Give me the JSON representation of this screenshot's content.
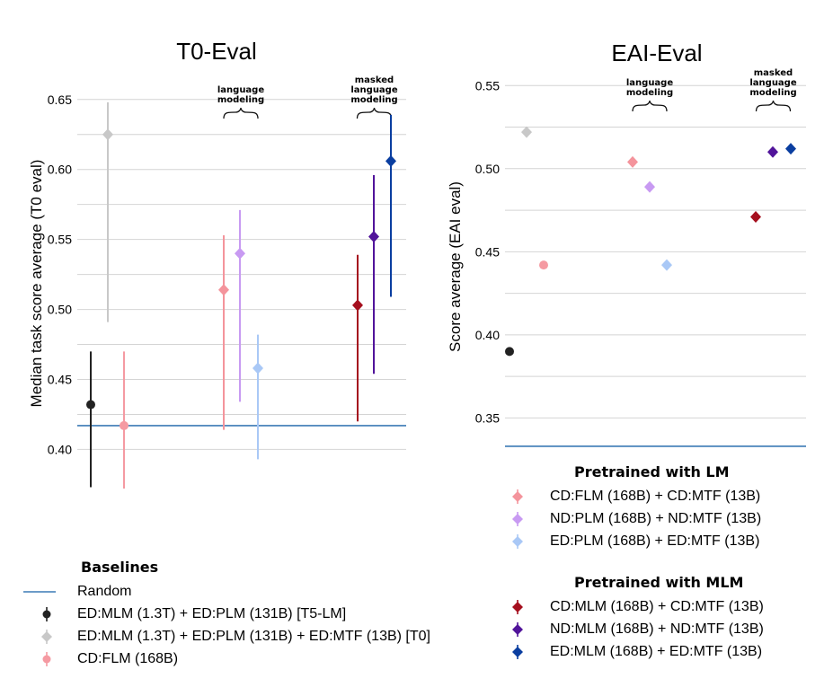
{
  "chart_data": [
    {
      "type": "scatter",
      "title": "T0-Eval",
      "ylabel": "Median task score average (T0 eval)",
      "ylim": [
        0.39,
        0.655
      ],
      "yticks": [
        "0.40",
        "0.45",
        "0.50",
        "0.55",
        "0.60",
        "0.65"
      ],
      "baseline": {
        "name": "Random",
        "value": 0.417
      },
      "annotations": [
        {
          "text": [
            "language",
            "modeling"
          ],
          "over_groups": [
            4,
            6
          ]
        },
        {
          "text": [
            "masked",
            "language",
            "modeling"
          ],
          "over_groups": [
            7,
            9
          ]
        }
      ],
      "points": [
        {
          "series": "t5lm",
          "slot": 1,
          "value": 0.432,
          "low": 0.373,
          "high": 0.47
        },
        {
          "series": "t0",
          "slot": 2,
          "value": 0.625,
          "low": 0.491,
          "high": 0.648
        },
        {
          "series": "cdflm",
          "slot": 3,
          "value": 0.417,
          "low": 0.372,
          "high": 0.47
        },
        {
          "series": "cd_lm",
          "slot": 4,
          "value": 0.514,
          "low": 0.414,
          "high": 0.553
        },
        {
          "series": "nd_lm",
          "slot": 5,
          "value": 0.54,
          "low": 0.434,
          "high": 0.571
        },
        {
          "series": "ed_lm",
          "slot": 6,
          "value": 0.458,
          "low": 0.393,
          "high": 0.482
        },
        {
          "series": "cd_mlm",
          "slot": 7,
          "value": 0.503,
          "low": 0.42,
          "high": 0.539
        },
        {
          "series": "nd_mlm",
          "slot": 8,
          "value": 0.552,
          "low": 0.454,
          "high": 0.596
        },
        {
          "series": "ed_mlm",
          "slot": 9,
          "value": 0.606,
          "low": 0.509,
          "high": 0.639
        }
      ]
    },
    {
      "type": "scatter",
      "title": "EAI-Eval",
      "ylabel": "Score average (EAI eval)",
      "ylim": [
        0.327,
        0.555
      ],
      "yticks": [
        "0.35",
        "0.40",
        "0.45",
        "0.50",
        "0.55"
      ],
      "baseline": {
        "name": "Random",
        "value": 0.333
      },
      "annotations": [
        {
          "text": [
            "language",
            "modeling"
          ],
          "over_groups": [
            4,
            6
          ]
        },
        {
          "text": [
            "masked",
            "language",
            "modeling"
          ],
          "over_groups": [
            7,
            9
          ]
        }
      ],
      "points": [
        {
          "series": "t5lm",
          "slot": 1,
          "value": 0.39
        },
        {
          "series": "t0",
          "slot": 2,
          "value": 0.522
        },
        {
          "series": "cdflm",
          "slot": 3,
          "value": 0.442
        },
        {
          "series": "cd_lm",
          "slot": 4,
          "value": 0.504
        },
        {
          "series": "nd_lm",
          "slot": 5,
          "value": 0.489
        },
        {
          "series": "ed_lm",
          "slot": 6,
          "value": 0.442
        },
        {
          "series": "cd_mlm",
          "slot": 7,
          "value": 0.471
        },
        {
          "series": "nd_mlm",
          "slot": 8,
          "value": 0.51
        },
        {
          "series": "ed_mlm",
          "slot": 9,
          "value": 0.512
        }
      ]
    }
  ],
  "series": {
    "random": {
      "label": "Random",
      "color": "#3b7ab5",
      "shape": "line"
    },
    "t5lm": {
      "label": "ED:MLM (1.3T) + ED:PLM (131B) [T5-LM]",
      "color": "#222222",
      "shape": "circle"
    },
    "t0": {
      "label": "ED:MLM (1.3T) + ED:PLM (131B) + ED:MTF (13B) [T0]",
      "color": "#c8c8c8",
      "shape": "diamond"
    },
    "cdflm": {
      "label": "CD:FLM (168B)",
      "color": "#f59aa2",
      "shape": "circle"
    },
    "cd_lm": {
      "label": "CD:FLM (168B) + CD:MTF (13B)",
      "color": "#f4949c",
      "shape": "diamond"
    },
    "nd_lm": {
      "label": "ND:PLM (168B) + ND:MTF (13B)",
      "color": "#c89af2",
      "shape": "diamond"
    },
    "ed_lm": {
      "label": "ED:PLM (168B) + ED:MTF (13B)",
      "color": "#a9c8f6",
      "shape": "diamond"
    },
    "cd_mlm": {
      "label": "CD:MLM (168B) + CD:MTF (13B)",
      "color": "#a50f1e",
      "shape": "diamond"
    },
    "nd_mlm": {
      "label": "ND:MLM (168B) + ND:MTF (13B)",
      "color": "#51149a",
      "shape": "diamond"
    },
    "ed_mlm": {
      "label": "ED:MLM (168B) + ED:MTF (13B)",
      "color": "#0a3ea0",
      "shape": "diamond"
    }
  },
  "legend": {
    "baselines_title": "Baselines",
    "lm_title": "Pretrained with LM",
    "mlm_title": "Pretrained with MLM"
  }
}
